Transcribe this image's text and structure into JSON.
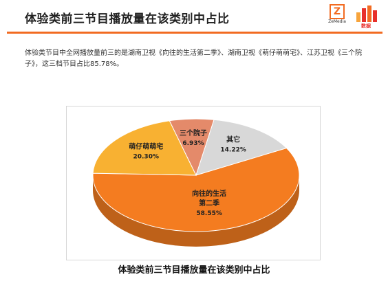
{
  "header": {
    "title": "体验类前三节目播放量在该类别中占比",
    "logo_left_text": "ZeMedia 泽传媒",
    "logo_right_text": "数据风向"
  },
  "intro_text": "体验类节目中全网播放量前三的是湖南卫视《向往的生活第二季》、湖南卫视《萌仔萌萌宅》、江苏卫视《三个院子》，这三档节目占比85.78%。",
  "chart_data": {
    "type": "pie",
    "title": "体验类前三节目播放量在该类别中占比",
    "slices": [
      {
        "label": "向往的生活第二季",
        "value": 58.55,
        "value_label": "58.55%",
        "color": "#f47c20"
      },
      {
        "label": "萌仔萌萌宅",
        "value": 20.3,
        "value_label": "20.30%",
        "color": "#f8b132"
      },
      {
        "label": "三个院子",
        "value": 6.93,
        "value_label": "6.93%",
        "color": "#e48a6a"
      },
      {
        "label": "其它",
        "value": 14.22,
        "value_label": "14.22%",
        "color": "#d8d8d8"
      }
    ]
  }
}
